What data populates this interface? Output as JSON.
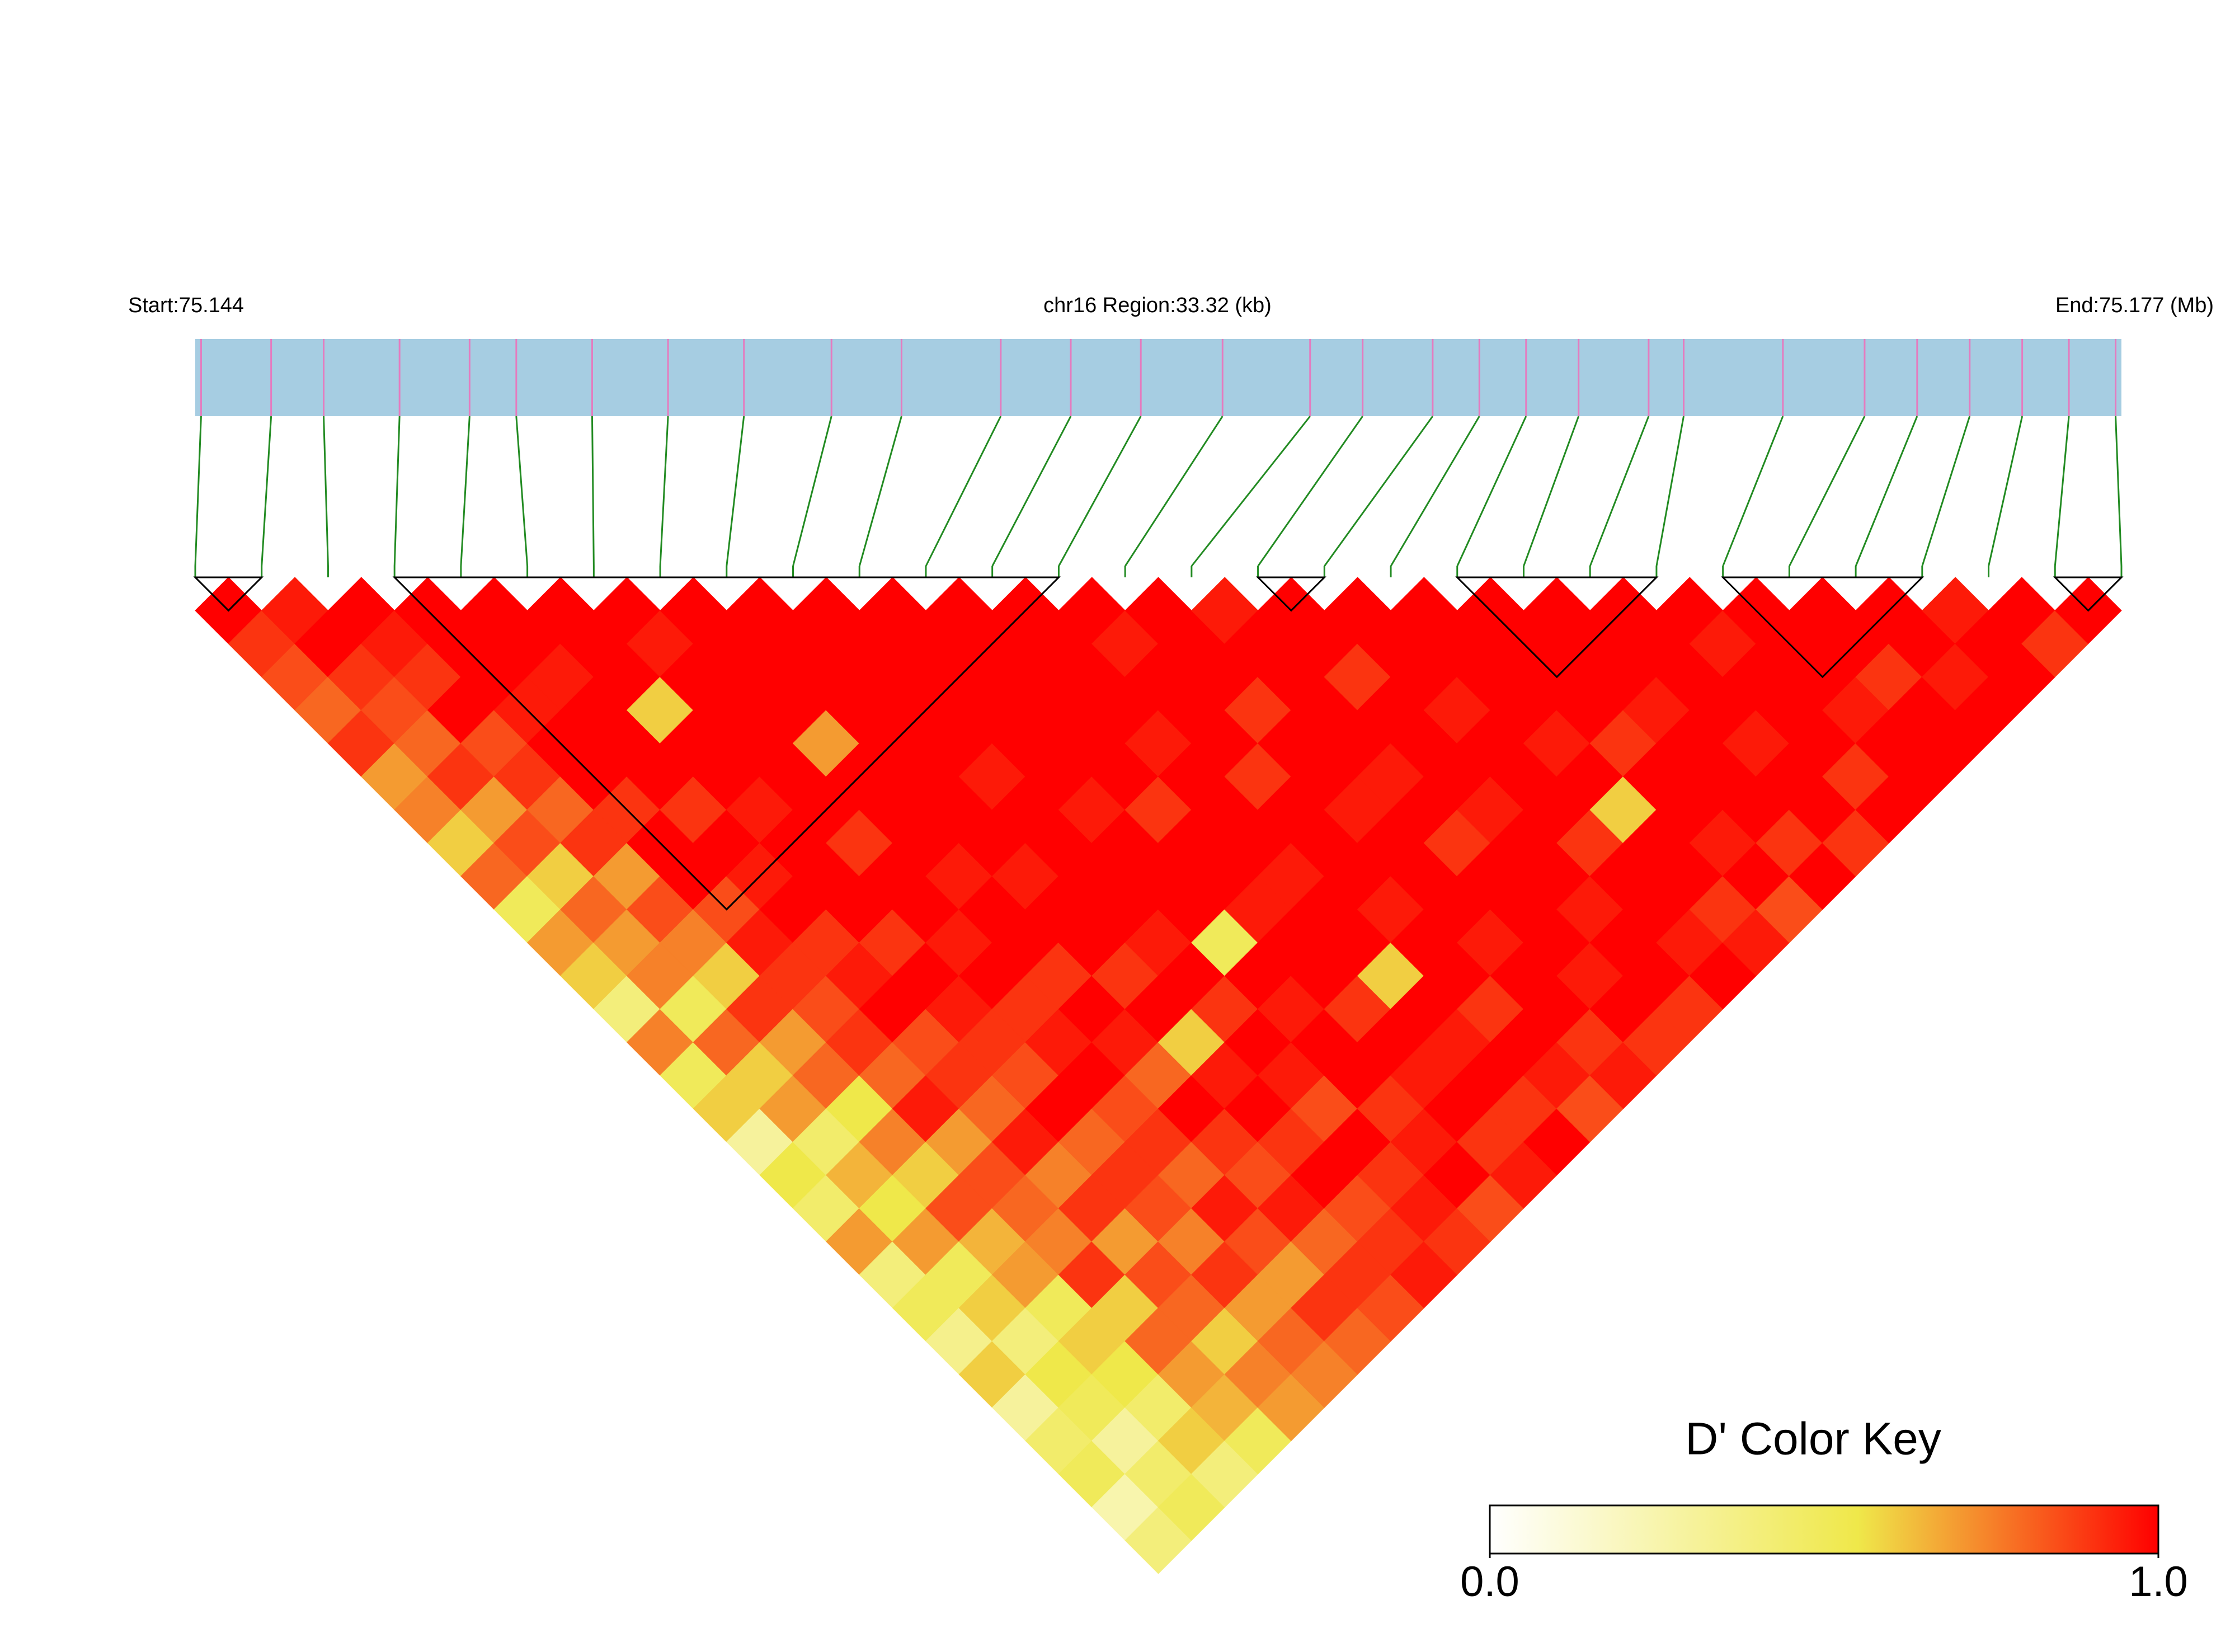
{
  "chart_data": {
    "type": "ld_heatmap",
    "start_label": "Start:75.144",
    "region_label": "chr16 Region:33.32 (kb)",
    "end_label": "End:75.177 (Mb)",
    "xlim": [
      75.144,
      75.177
    ],
    "snp_positions": [
      75.1441,
      75.1453,
      75.1462,
      75.1475,
      75.1487,
      75.1495,
      75.1508,
      75.1521,
      75.1534,
      75.1549,
      75.1561,
      75.1578,
      75.159,
      75.1602,
      75.1616,
      75.1631,
      75.164,
      75.1652,
      75.166,
      75.1668,
      75.1677,
      75.1689,
      75.1695,
      75.1712,
      75.1726,
      75.1735,
      75.1744,
      75.1753,
      75.1761,
      75.1769
    ],
    "track_color": "#a6cde2",
    "marker_color": "#e57bbf",
    "link_color": "#228b22",
    "matrix": [
      [
        1,
        0.9,
        0.85,
        0.8,
        0.9,
        0.7,
        0.75,
        0.6,
        0.8,
        0.5,
        0.7,
        0.6,
        0.4,
        0.75,
        0.5,
        0.6,
        0.3,
        0.55,
        0.45,
        0.7,
        0.4,
        0.5,
        0.35,
        0.6,
        0.3,
        0.45,
        0.5,
        0.25,
        0.4
      ],
      [
        0.95,
        1,
        0.9,
        0.85,
        0.8,
        0.9,
        0.7,
        0.85,
        0.6,
        0.8,
        0.7,
        0.75,
        0.5,
        0.8,
        0.6,
        0.7,
        0.45,
        0.65,
        0.55,
        0.7,
        0.5,
        0.6,
        0.4,
        0.55,
        0.5,
        0.3,
        0.45,
        0.5
      ],
      [
        1,
        0.95,
        0.9,
        1,
        0.85,
        0.9,
        0.8,
        0.9,
        0.7,
        0.85,
        0.75,
        0.6,
        0.9,
        0.7,
        0.8,
        0.55,
        0.75,
        0.6,
        0.85,
        0.65,
        0.7,
        0.5,
        0.6,
        0.55,
        0.45,
        0.6,
        0.4
      ],
      [
        1,
        1,
        1,
        0.95,
        1,
        1,
        0.9,
        1,
        1,
        0.85,
        0.95,
        0.9,
        0.85,
        0.9,
        0.8,
        0.95,
        0.7,
        0.85,
        0.8,
        0.75,
        0.9,
        0.6,
        0.8,
        0.7,
        0.65,
        0.5
      ],
      [
        1,
        1,
        0.95,
        1,
        1,
        1,
        0.9,
        1,
        0.95,
        1,
        0.9,
        0.95,
        1,
        0.85,
        0.9,
        0.8,
        0.95,
        0.75,
        0.9,
        0.7,
        0.85,
        0.8,
        0.6,
        0.75,
        0.7
      ],
      [
        1,
        1,
        1,
        0.6,
        1,
        1,
        0.95,
        1,
        1,
        1,
        0.9,
        1,
        0.95,
        0.9,
        0.85,
        1,
        0.8,
        0.9,
        0.85,
        0.75,
        0.9,
        0.7,
        0.8,
        0.75
      ],
      [
        1,
        0.95,
        1,
        1,
        1,
        1,
        1,
        0.9,
        1,
        1,
        0.95,
        1,
        0.9,
        0.95,
        1,
        0.85,
        0.9,
        0.8,
        0.95,
        0.85,
        0.7,
        0.9,
        0.8
      ],
      [
        1,
        1,
        1,
        1,
        0.7,
        1,
        1,
        1,
        0.95,
        1,
        1,
        0.9,
        1,
        0.95,
        0.8,
        1,
        0.9,
        0.85,
        0.95,
        0.8,
        0.9,
        0.85
      ],
      [
        1,
        1,
        1,
        1,
        1,
        1,
        1,
        1,
        0.95,
        1,
        1,
        0.9,
        1,
        0.6,
        0.95,
        1,
        0.9,
        1,
        0.85,
        0.9,
        0.95
      ],
      [
        1,
        1,
        1,
        1,
        1,
        0.95,
        1,
        1,
        1,
        1,
        0.95,
        1,
        0.9,
        1,
        0.95,
        0.85,
        1,
        0.9,
        0.95,
        0.9
      ],
      [
        1,
        1,
        1,
        1,
        1,
        1,
        0.95,
        1,
        1,
        1,
        0.5,
        1,
        0.95,
        1,
        1,
        0.9,
        0.95,
        1,
        0.85
      ],
      [
        1,
        1,
        1,
        1,
        1,
        1,
        0.9,
        1,
        1,
        0.95,
        1,
        1,
        0.9,
        1,
        0.95,
        1,
        0.9,
        0.95
      ],
      [
        1,
        1,
        1,
        1,
        0.95,
        1,
        1,
        1,
        0.95,
        1,
        1,
        0.6,
        1,
        0.95,
        1,
        0.9,
        1
      ],
      [
        1,
        0.95,
        1,
        1,
        1,
        0.9,
        1,
        1,
        1,
        0.95,
        1,
        1,
        0.9,
        1,
        0.95,
        0.85
      ],
      [
        1,
        1,
        1,
        0.9,
        1,
        1,
        0.95,
        1,
        1,
        1,
        0.95,
        1,
        1,
        0.9,
        0.95
      ],
      [
        0.95,
        1,
        1,
        1,
        1,
        0.95,
        1,
        0.9,
        1,
        1,
        1,
        0.95,
        1,
        0.9
      ],
      [
        1,
        1,
        0.9,
        1,
        1,
        1,
        0.95,
        1,
        1,
        0.95,
        1,
        1,
        0.9
      ],
      [
        1,
        1,
        1,
        0.95,
        1,
        1,
        1,
        0.9,
        1,
        1,
        0.95,
        1
      ],
      [
        1,
        1,
        1,
        1,
        0.95,
        1,
        0.6,
        1,
        1,
        0.9,
        0.95
      ],
      [
        1,
        1,
        1,
        1,
        0.9,
        1,
        1,
        0.95,
        1,
        0.85
      ],
      [
        1,
        1,
        1,
        0.95,
        1,
        1,
        1,
        0.9,
        1
      ],
      [
        1,
        1,
        1,
        1,
        0.95,
        1,
        1,
        0.9
      ],
      [
        1,
        0.95,
        1,
        1,
        1,
        0.9,
        1
      ],
      [
        1,
        1,
        1,
        0.95,
        1,
        1
      ],
      [
        1,
        1,
        0.9,
        1,
        1
      ],
      [
        1,
        1,
        0.95,
        1
      ],
      [
        0.95,
        1,
        1
      ],
      [
        1,
        0.9
      ],
      [
        1
      ]
    ],
    "blocks": [
      [
        0,
        1
      ],
      [
        3,
        13
      ],
      [
        16,
        17
      ],
      [
        19,
        22
      ],
      [
        23,
        26
      ],
      [
        28,
        29
      ]
    ],
    "block_color": "#000000",
    "colorscale": [
      [
        0,
        "#ffffff"
      ],
      [
        0.55,
        "#efe84a"
      ],
      [
        1,
        "#ff0000"
      ]
    ],
    "key_title": "D' Color Key",
    "key_lim": [
      0,
      1
    ],
    "key_ticks": [
      {
        "value": 0,
        "label": "0.0"
      },
      {
        "value": 1,
        "label": "1.0"
      }
    ]
  }
}
